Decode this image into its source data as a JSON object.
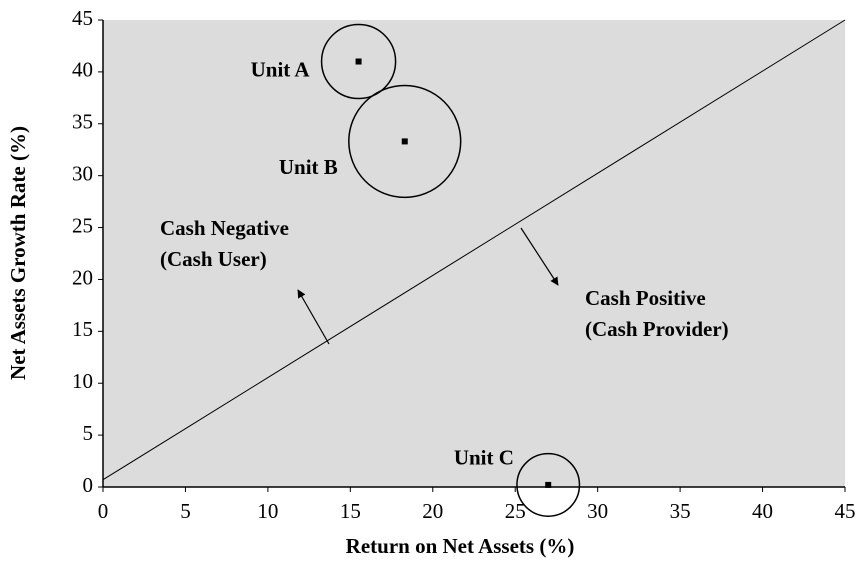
{
  "chart_data": {
    "type": "bubble",
    "xlabel": "Return on Net Assets (%)",
    "ylabel": "Net Assets Growth Rate (%)",
    "xlim": [
      0,
      45
    ],
    "ylim": [
      0,
      45
    ],
    "xticks": [
      0,
      5,
      10,
      15,
      20,
      25,
      30,
      35,
      40,
      45
    ],
    "yticks": [
      0,
      5,
      10,
      15,
      20,
      25,
      30,
      35,
      40,
      45
    ],
    "labels": [
      "Unit A",
      "Unit B",
      "Unit C"
    ],
    "x": [
      15.5,
      18.3,
      27
    ],
    "y": [
      41,
      33.3,
      0.2
    ],
    "sizes": [
      14,
      32,
      10
    ],
    "reference_line": {
      "x": [
        0,
        45
      ],
      "y": [
        0.7,
        45
      ]
    },
    "annotations": [
      {
        "lines": [
          "Cash Negative",
          "(Cash User)"
        ]
      },
      {
        "lines": [
          "Cash Positive",
          "(Cash Provider)"
        ]
      }
    ]
  }
}
